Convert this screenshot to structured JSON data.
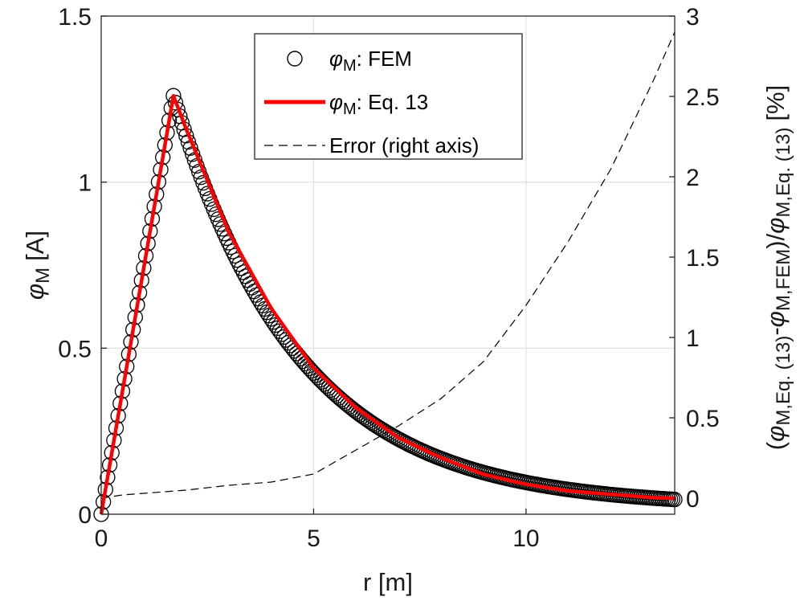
{
  "chart_data": {
    "type": "line",
    "xlabel": "r [m]",
    "ylabel": "φ_M [A]",
    "y2label": "(φ_M,Eq. (13) - φ_M,FEM)/φ_M,Eq. (13) [%]",
    "xlim": [
      0,
      13.5
    ],
    "ylim": [
      0,
      1.5
    ],
    "y2lim": [
      -0.1,
      3.0
    ],
    "xticks": [
      0,
      5,
      10
    ],
    "yticks": [
      0,
      0.5,
      1,
      1.5
    ],
    "y2ticks": [
      0,
      0.5,
      1,
      1.5,
      2,
      2.5,
      3
    ],
    "grid": true,
    "legend_position": "top-center",
    "model": {
      "peak_r": 1.7,
      "peak_phi": 1.26,
      "decay_rate": 0.34,
      "decay_power": 1.8,
      "tail_phi": 0.022
    },
    "series": [
      {
        "name": "φM: FEM",
        "style": "circles",
        "color": "#000000",
        "x_step": 0.05
      },
      {
        "name": "φM: Eq. 13",
        "style": "line",
        "color": "#ff0000",
        "x": [
          0,
          0.5,
          1,
          1.7,
          2,
          3,
          4,
          5,
          6,
          7,
          8,
          9,
          10,
          11,
          12,
          13,
          13.5
        ],
        "values": [
          0,
          0.37,
          0.74,
          1.26,
          1.16,
          0.85,
          0.62,
          0.44,
          0.32,
          0.23,
          0.17,
          0.12,
          0.09,
          0.07,
          0.06,
          0.05,
          0.048
        ]
      },
      {
        "name": "Error (right axis)",
        "style": "dashed",
        "color": "#000000",
        "axis": "right",
        "x": [
          0,
          0.5,
          1,
          2,
          3,
          4,
          5,
          6,
          7,
          8,
          9,
          10,
          11,
          12,
          13,
          13.5
        ],
        "values": [
          0,
          0.02,
          0.03,
          0.05,
          0.08,
          0.1,
          0.15,
          0.3,
          0.45,
          0.62,
          0.85,
          1.2,
          1.6,
          2.05,
          2.6,
          2.9
        ]
      }
    ]
  },
  "legend": {
    "items": [
      {
        "sym": "φ",
        "sub": "M",
        "text": ": FEM"
      },
      {
        "sym": "φ",
        "sub": "M",
        "text": ": Eq. 13"
      },
      {
        "text": "Error (right axis)"
      }
    ]
  },
  "axes": {
    "ylabel_sym": "φ",
    "ylabel_sub": "M",
    "ylabel_unit": "[A]",
    "y2label_parts": {
      "open": "(",
      "sym": "φ",
      "sub1": "M,Eq. (13)",
      "minus": "-",
      "sub2": "M,FEM",
      "close": ")/",
      "sub3": "M,Eq. (13)",
      "unit": "[%]"
    },
    "xlabel": "r [m]"
  },
  "colors": {
    "fem": "#000000",
    "eq13": "#ff0000",
    "error": "#000000",
    "grid": "#e3e3e3"
  }
}
